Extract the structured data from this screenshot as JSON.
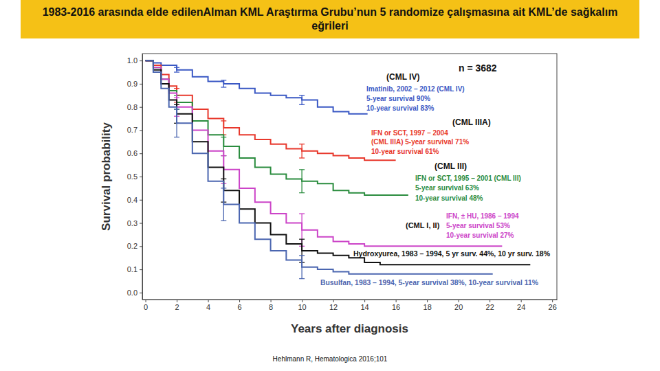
{
  "chart_data": {
    "type": "line",
    "line_style": "step",
    "grid": false,
    "title": "1983-2016 arasında elde edilenAlman KML Araştırma Grubu’nun 5 randomize çalışmasına ait KML’de sağkalım eğrileri",
    "xlabel": "Years after diagnosis",
    "ylabel": "Survival probability",
    "source": "Hehlmann R, Hematologica 2016;101",
    "xlim": [
      -0.2,
      26.3
    ],
    "ylim": [
      -0.03,
      1.03
    ],
    "xticks": [
      0,
      2,
      4,
      6,
      8,
      10,
      12,
      14,
      16,
      18,
      20,
      22,
      24,
      26
    ],
    "yticks": [
      {
        "value": 0,
        "label": "0.0"
      },
      0.1,
      0.2,
      0.3,
      0.4,
      0.5,
      0.6,
      0.7,
      0.8,
      0.9,
      {
        "value": 1,
        "label": "1.0"
      }
    ],
    "annotations": [
      "n = 3682",
      "(CML IV)",
      "5-year survival 90%",
      "10-year survival 83%",
      "(CML IIIA)",
      "(CML IIIA) 5-year survival 71%",
      "10-year survival 61%",
      "(CML III)",
      "5-year survival 63%",
      "10-year survival 48%",
      "5-year survival 53%",
      "10-year survival 27%",
      "(CML I, II)"
    ],
    "series": [
      {
        "name": "Imatinib, 2002 – 2012 (CML IV)",
        "color": "#3a58c4",
        "x": [
          0,
          0.5,
          1,
          2,
          3,
          4,
          5,
          6,
          7,
          8,
          9,
          10,
          11,
          12,
          13,
          14.2
        ],
        "values": [
          1.0,
          0.99,
          0.98,
          0.96,
          0.93,
          0.91,
          0.9,
          0.88,
          0.86,
          0.85,
          0.84,
          0.83,
          0.8,
          0.78,
          0.77,
          0.77
        ],
        "errors": [
          null,
          null,
          null,
          0.01,
          null,
          null,
          0.015,
          null,
          null,
          null,
          null,
          0.02,
          null,
          null,
          null,
          null
        ]
      },
      {
        "name": "IFN or SCT, 1997 – 2004",
        "color": "#e8382c",
        "x": [
          0,
          0.5,
          1,
          1.5,
          2,
          3,
          4,
          5,
          6,
          7,
          8,
          9,
          10,
          11,
          12,
          13,
          14,
          16
        ],
        "values": [
          1.0,
          0.98,
          0.94,
          0.89,
          0.85,
          0.79,
          0.75,
          0.71,
          0.68,
          0.66,
          0.64,
          0.62,
          0.61,
          0.6,
          0.59,
          0.58,
          0.57,
          0.57
        ],
        "errors": [
          null,
          null,
          null,
          null,
          0.03,
          null,
          null,
          0.03,
          null,
          null,
          null,
          null,
          0.03,
          null,
          null,
          null,
          null,
          null
        ]
      },
      {
        "name": "IFN or SCT, 1995 – 2001 (CML III)",
        "color": "#2a8c3e",
        "x": [
          0,
          0.5,
          1,
          1.5,
          2,
          3,
          4,
          5,
          6,
          7,
          8,
          9,
          10,
          11,
          12,
          13,
          14,
          16.8
        ],
        "values": [
          1.0,
          0.97,
          0.92,
          0.87,
          0.82,
          0.74,
          0.68,
          0.63,
          0.58,
          0.54,
          0.51,
          0.49,
          0.48,
          0.47,
          0.44,
          0.43,
          0.42,
          0.42
        ],
        "errors": [
          null,
          null,
          null,
          null,
          0.03,
          null,
          null,
          0.04,
          null,
          null,
          null,
          null,
          0.05,
          null,
          null,
          null,
          null,
          null
        ]
      },
      {
        "name": "IFN, ± HU, 1986 – 1994",
        "color": "#cc44c8",
        "x": [
          0,
          0.5,
          1,
          1.5,
          2,
          3,
          4,
          5,
          6,
          7,
          8,
          9,
          10,
          11,
          12,
          13,
          14,
          22.8
        ],
        "values": [
          1.0,
          0.97,
          0.92,
          0.86,
          0.8,
          0.7,
          0.61,
          0.53,
          0.45,
          0.39,
          0.34,
          0.3,
          0.27,
          0.24,
          0.22,
          0.21,
          0.2,
          0.2
        ],
        "errors": [
          null,
          null,
          null,
          null,
          0.04,
          null,
          null,
          0.06,
          null,
          null,
          null,
          null,
          0.07,
          null,
          null,
          null,
          null,
          null
        ]
      },
      {
        "name": "Hydroxyurea, 1983 – 1994, 5 yr surv. 44%, 10 yr surv. 18%",
        "color": "#111111",
        "x": [
          0,
          0.5,
          1,
          1.5,
          2,
          3,
          4,
          5,
          6,
          7,
          8,
          9,
          10,
          11,
          12,
          13,
          14,
          15,
          24.6
        ],
        "values": [
          1.0,
          0.96,
          0.9,
          0.83,
          0.77,
          0.65,
          0.54,
          0.44,
          0.36,
          0.3,
          0.25,
          0.21,
          0.18,
          0.17,
          0.16,
          0.15,
          0.13,
          0.12,
          0.12
        ],
        "errors": [
          null,
          null,
          null,
          null,
          0.04,
          null,
          null,
          0.05,
          null,
          null,
          null,
          null,
          0.05,
          null,
          null,
          null,
          null,
          null,
          null
        ]
      },
      {
        "name": "Busulfan, 1983 – 1994, 5-year survival 38%, 10-year survival 11%",
        "color": "#4b66b0",
        "x": [
          0,
          0.5,
          1,
          1.5,
          2,
          3,
          4,
          5,
          6,
          7,
          8,
          9,
          10,
          11,
          12,
          13,
          22.2
        ],
        "values": [
          1.0,
          0.95,
          0.88,
          0.8,
          0.73,
          0.6,
          0.48,
          0.38,
          0.3,
          0.23,
          0.18,
          0.14,
          0.11,
          0.1,
          0.09,
          0.08,
          0.08
        ],
        "errors": [
          null,
          null,
          null,
          null,
          0.06,
          null,
          null,
          0.07,
          null,
          null,
          null,
          null,
          0.05,
          null,
          null,
          null,
          null
        ]
      }
    ]
  }
}
